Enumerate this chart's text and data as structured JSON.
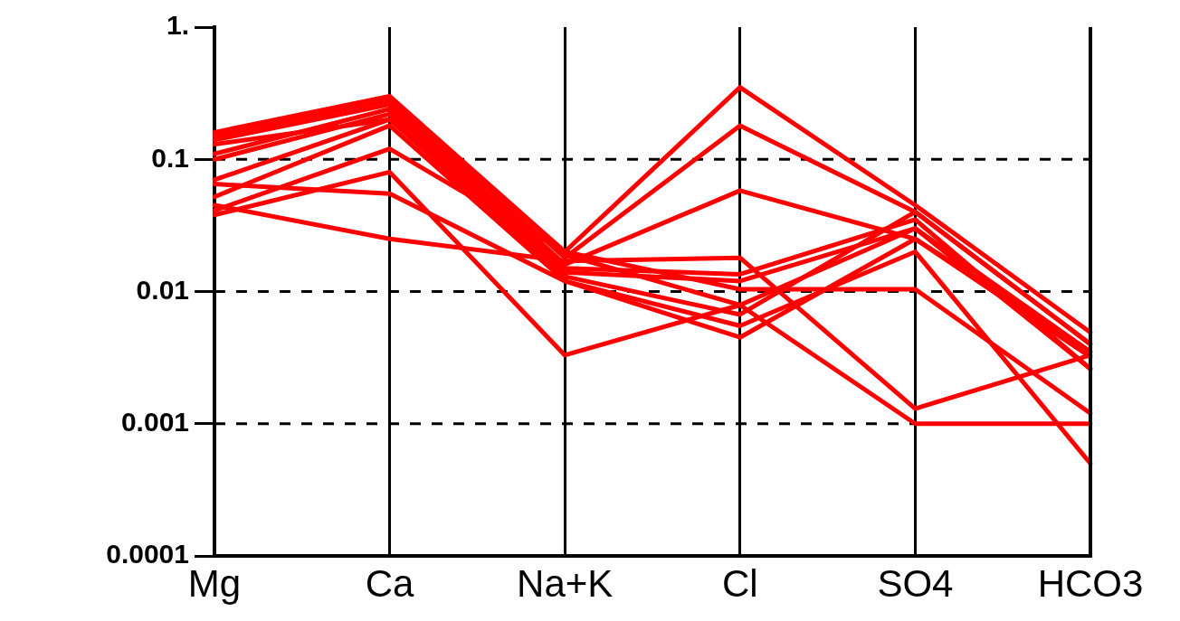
{
  "chart_data": {
    "type": "line",
    "categories": [
      "Mg",
      "Ca",
      "Na+K",
      "Cl",
      "SO4",
      "HCO3"
    ],
    "series": [
      {
        "color": "#ff0000",
        "values": [
          0.16,
          0.3,
          0.02,
          0.35,
          0.045,
          0.0049
        ]
      },
      {
        "color": "#ff0000",
        "values": [
          0.15,
          0.28,
          0.018,
          0.18,
          0.04,
          0.004
        ]
      },
      {
        "color": "#ff0000",
        "values": [
          0.14,
          0.26,
          0.016,
          0.058,
          0.025,
          0.0032
        ]
      },
      {
        "color": "#ff0000",
        "values": [
          0.11,
          0.24,
          0.015,
          0.0135,
          0.035,
          0.0026
        ]
      },
      {
        "color": "#ff0000",
        "values": [
          0.1,
          0.22,
          0.014,
          0.012,
          0.03,
          0.0026
        ]
      },
      {
        "color": "#ff0000",
        "values": [
          0.07,
          0.2,
          0.013,
          0.0067,
          0.04,
          0.004
        ]
      },
      {
        "color": "#ff0000",
        "values": [
          0.052,
          0.18,
          0.012,
          0.0055,
          0.02,
          0.0005
        ]
      },
      {
        "color": "#ff0000",
        "values": [
          0.045,
          0.025,
          0.017,
          0.018,
          0.0013,
          0.0033
        ]
      },
      {
        "color": "#ff0000",
        "values": [
          0.041,
          0.12,
          0.02,
          0.0104,
          0.0104,
          0.0012
        ]
      },
      {
        "color": "#ff0000",
        "values": [
          0.038,
          0.08,
          0.0033,
          0.0079,
          0.03,
          0.0035
        ]
      },
      {
        "color": "#ff0000",
        "values": [
          0.065,
          0.055,
          0.012,
          0.0045,
          0.025,
          0.0035
        ]
      },
      {
        "color": "#ff0000",
        "values": [
          0.13,
          0.2,
          0.019,
          0.0079,
          0.001,
          0.001
        ]
      }
    ],
    "log": "y",
    "ylim": [
      0.0001,
      1
    ],
    "yticks": [
      0.0001,
      0.001,
      0.01,
      0.1,
      {
        "value": 1,
        "label": "1."
      }
    ],
    "grid": true,
    "legend": false,
    "marker": "none",
    "line_style": "solid"
  }
}
